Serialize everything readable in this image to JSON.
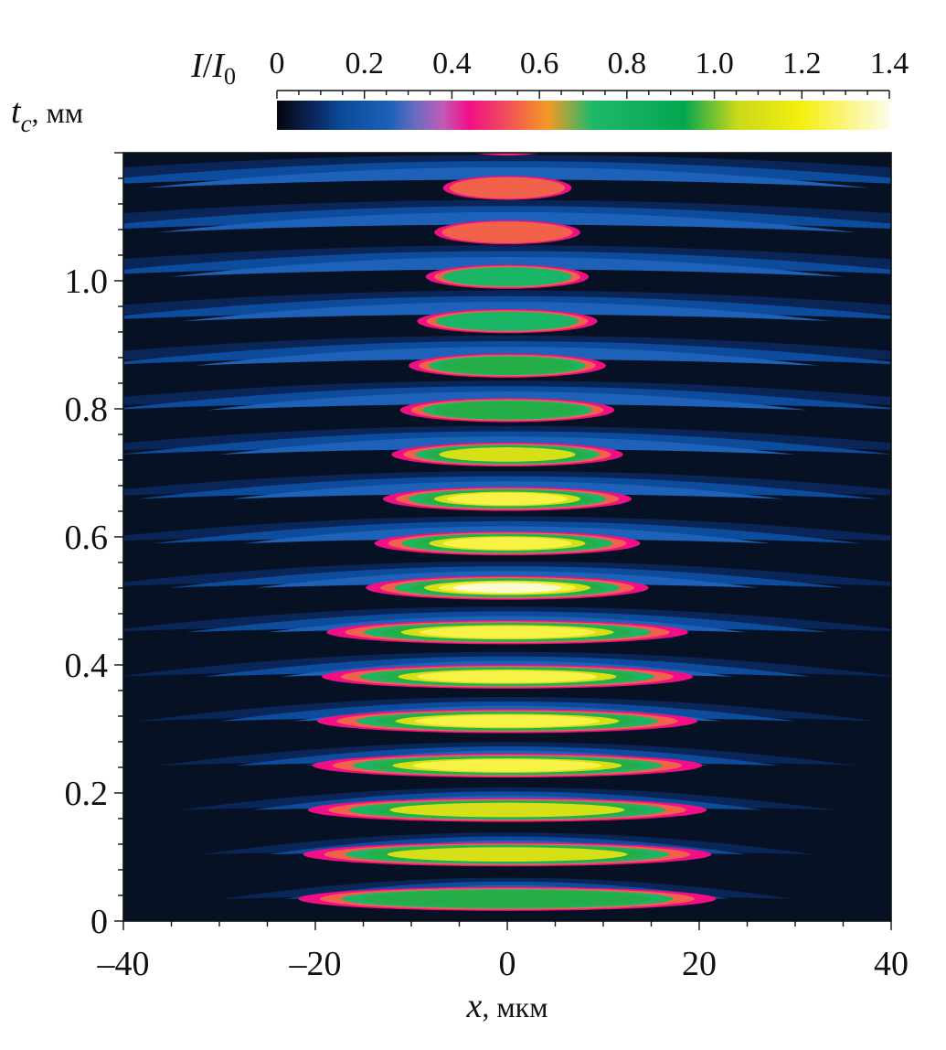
{
  "chart_data": {
    "type": "heatmap",
    "title": "",
    "colorbar": {
      "label_main": "I",
      "label_slash": "/",
      "label_sub_main": "I",
      "label_sub": "0",
      "range": [
        0,
        1.4
      ],
      "ticks": [
        "0",
        "0.2",
        "0.4",
        "0.6",
        "0.8",
        "1.0",
        "1.2",
        "1.4"
      ],
      "tick_values": [
        0,
        0.2,
        0.4,
        0.6,
        0.8,
        1.0,
        1.2,
        1.4
      ],
      "stops": [
        {
          "v": 0.0,
          "color": "#05060d"
        },
        {
          "v": 0.07,
          "color": "#0a2150"
        },
        {
          "v": 0.15,
          "color": "#0b4a9a"
        },
        {
          "v": 0.26,
          "color": "#1d62b8"
        },
        {
          "v": 0.32,
          "color": "#6f6cc0"
        },
        {
          "v": 0.38,
          "color": "#c259b6"
        },
        {
          "v": 0.44,
          "color": "#f20f86"
        },
        {
          "v": 0.52,
          "color": "#f04a5c"
        },
        {
          "v": 0.62,
          "color": "#f59a25"
        },
        {
          "v": 0.72,
          "color": "#1fb86a"
        },
        {
          "v": 0.93,
          "color": "#05a550"
        },
        {
          "v": 1.05,
          "color": "#c8d81a"
        },
        {
          "v": 1.2,
          "color": "#f6ef10"
        },
        {
          "v": 1.4,
          "color": "#fdfbe9"
        }
      ]
    },
    "x_axis": {
      "label_var": "x",
      "label_unit": ", мкм",
      "range": [
        -40,
        40
      ],
      "ticks": [
        "–40",
        "–20",
        "0",
        "20",
        "40"
      ],
      "tick_values": [
        -40,
        -20,
        0,
        20,
        40
      ],
      "minor_step": 5
    },
    "y_axis": {
      "label_var": "t",
      "label_sub": "c",
      "label_unit": ", мм",
      "range": [
        0,
        1.2
      ],
      "ticks": [
        "0",
        "0.2",
        "0.4",
        "0.6",
        "0.8",
        "1.0"
      ],
      "tick_values": [
        0,
        0.2,
        0.4,
        0.6,
        0.8,
        1.0
      ],
      "minor_step": 0.04
    },
    "fringe_period_mm": 0.0694,
    "fringe_count": 17
  }
}
